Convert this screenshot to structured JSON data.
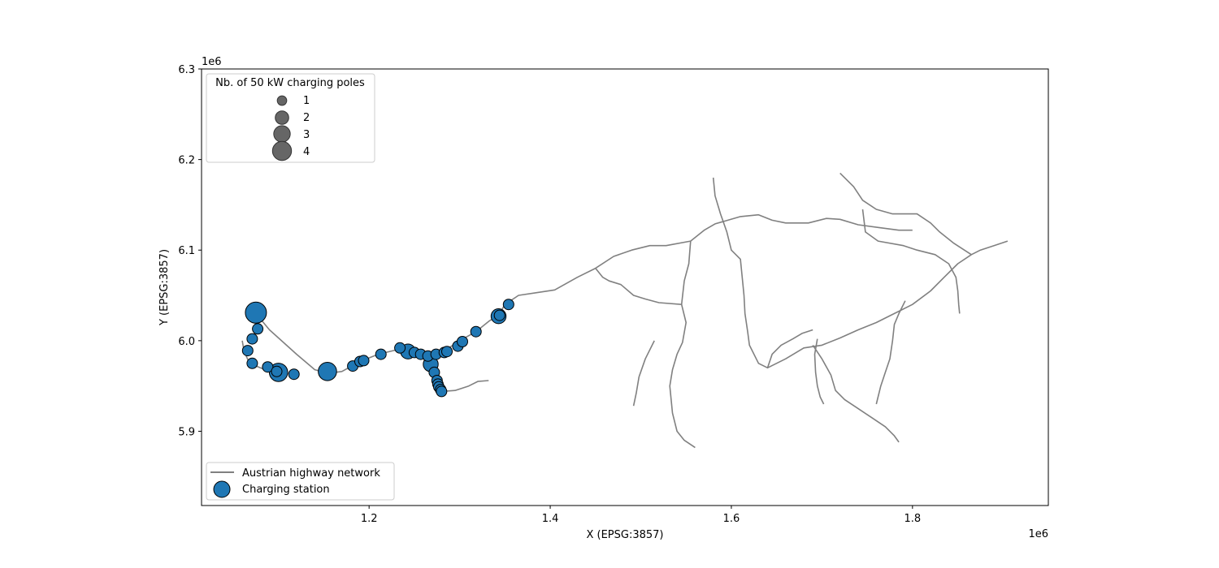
{
  "chart_data": {
    "type": "scatter",
    "subtype": "map",
    "xlabel": "X (EPSG:3857)",
    "ylabel": "Y (EPSG:3857)",
    "x_offset_label": "1e6",
    "y_offset_label": "1e6",
    "xlim": [
      1015000,
      1950000
    ],
    "ylim": [
      5818000,
      6300000
    ],
    "x_ticks": [
      1.2,
      1.4,
      1.6,
      1.8
    ],
    "x_tick_labels": [
      "1.2",
      "1.4",
      "1.6",
      "1.8"
    ],
    "y_ticks": [
      5.9,
      6.0,
      6.1,
      6.2,
      6.3
    ],
    "y_tick_labels": [
      "5.9",
      "6.0",
      "6.1",
      "6.2",
      "6.3"
    ],
    "grid": false,
    "colors": {
      "station": "#1f77b4",
      "network": "#808080",
      "size_legend": "#666666"
    },
    "size_legend": {
      "title": "Nb. of 50 kW charging poles",
      "placement": "top-left",
      "entries": [
        {
          "label": "1",
          "value": 1
        },
        {
          "label": "2",
          "value": 2
        },
        {
          "label": "3",
          "value": 3
        },
        {
          "label": "4",
          "value": 4
        }
      ]
    },
    "legend": {
      "placement": "bottom-left",
      "entries": [
        {
          "label": "Austrian highway network",
          "kind": "line"
        },
        {
          "label": "Charging station",
          "kind": "marker"
        }
      ]
    },
    "network": [
      [
        [
          1075000,
          6030000
        ],
        [
          1090000,
          6012000
        ],
        [
          1100000,
          6003000
        ],
        [
          1120000,
          5985000
        ],
        [
          1140000,
          5968000
        ],
        [
          1155000,
          5964000
        ],
        [
          1170000,
          5966000
        ],
        [
          1190000,
          5977000
        ],
        [
          1210000,
          5985000
        ],
        [
          1235000,
          5991000
        ],
        [
          1250000,
          5988000
        ],
        [
          1265000,
          5985000
        ],
        [
          1285000,
          5990000
        ],
        [
          1300000,
          6000000
        ],
        [
          1318000,
          6010000
        ],
        [
          1333000,
          6022000
        ],
        [
          1343000,
          6028000
        ],
        [
          1350000,
          6040000
        ],
        [
          1365000,
          6050000
        ],
        [
          1385000,
          6053000
        ],
        [
          1405000,
          6056000
        ],
        [
          1430000,
          6070000
        ],
        [
          1450000,
          6080000
        ],
        [
          1470000,
          6093000
        ],
        [
          1490000,
          6100000
        ],
        [
          1510000,
          6105000
        ],
        [
          1528000,
          6105000
        ],
        [
          1555000,
          6110000
        ],
        [
          1570000,
          6122000
        ],
        [
          1582000,
          6129000
        ],
        [
          1610000,
          6137000
        ],
        [
          1630000,
          6139000
        ],
        [
          1645000,
          6133000
        ],
        [
          1660000,
          6130000
        ],
        [
          1685000,
          6130000
        ],
        [
          1705000,
          6135000
        ],
        [
          1720000,
          6134000
        ],
        [
          1740000,
          6128000
        ],
        [
          1762000,
          6125000
        ],
        [
          1785000,
          6122000
        ],
        [
          1800000,
          6122000
        ]
      ],
      [
        [
          1060000,
          6000000
        ],
        [
          1062000,
          5988000
        ],
        [
          1068000,
          5975000
        ],
        [
          1080000,
          5970000
        ],
        [
          1090000,
          5966000
        ],
        [
          1098000,
          5966000
        ],
        [
          1110000,
          5963000
        ]
      ],
      [
        [
          1267000,
          5975000
        ],
        [
          1270000,
          5965000
        ],
        [
          1272000,
          5955000
        ],
        [
          1275000,
          5948000
        ],
        [
          1280000,
          5944000
        ]
      ],
      [
        [
          1280000,
          5944000
        ],
        [
          1295000,
          5945000
        ],
        [
          1310000,
          5950000
        ],
        [
          1320000,
          5955000
        ],
        [
          1332000,
          5956000
        ]
      ],
      [
        [
          1555000,
          6110000
        ],
        [
          1553000,
          6085000
        ],
        [
          1548000,
          6066000
        ],
        [
          1545000,
          6040000
        ],
        [
          1550000,
          6020000
        ],
        [
          1546000,
          5998000
        ],
        [
          1540000,
          5985000
        ],
        [
          1535000,
          5968000
        ],
        [
          1532000,
          5950000
        ],
        [
          1535000,
          5920000
        ],
        [
          1540000,
          5900000
        ],
        [
          1548000,
          5890000
        ],
        [
          1560000,
          5882000
        ]
      ],
      [
        [
          1580000,
          6180000
        ],
        [
          1582000,
          6160000
        ],
        [
          1588000,
          6140000
        ],
        [
          1595000,
          6120000
        ],
        [
          1600000,
          6100000
        ],
        [
          1610000,
          6090000
        ],
        [
          1612000,
          6070000
        ],
        [
          1614000,
          6050000
        ],
        [
          1615000,
          6030000
        ],
        [
          1618000,
          6010000
        ],
        [
          1620000,
          5995000
        ],
        [
          1630000,
          5975000
        ],
        [
          1640000,
          5970000
        ],
        [
          1660000,
          5980000
        ],
        [
          1680000,
          5992000
        ],
        [
          1700000,
          5995000
        ],
        [
          1720000,
          6003000
        ],
        [
          1740000,
          6012000
        ],
        [
          1760000,
          6020000
        ],
        [
          1780000,
          6030000
        ],
        [
          1800000,
          6040000
        ],
        [
          1820000,
          6055000
        ],
        [
          1835000,
          6070000
        ],
        [
          1850000,
          6085000
        ],
        [
          1865000,
          6095000
        ],
        [
          1875000,
          6100000
        ],
        [
          1890000,
          6105000
        ],
        [
          1905000,
          6110000
        ]
      ],
      [
        [
          1745000,
          6145000
        ],
        [
          1748000,
          6120000
        ],
        [
          1762000,
          6110000
        ],
        [
          1790000,
          6105000
        ],
        [
          1805000,
          6100000
        ],
        [
          1825000,
          6095000
        ],
        [
          1840000,
          6085000
        ],
        [
          1848000,
          6070000
        ],
        [
          1850000,
          6055000
        ],
        [
          1851000,
          6040000
        ],
        [
          1852000,
          6030000
        ]
      ],
      [
        [
          1720000,
          6185000
        ],
        [
          1735000,
          6170000
        ],
        [
          1745000,
          6155000
        ],
        [
          1760000,
          6145000
        ],
        [
          1778000,
          6140000
        ],
        [
          1790000,
          6140000
        ],
        [
          1805000,
          6140000
        ],
        [
          1820000,
          6130000
        ],
        [
          1830000,
          6120000
        ],
        [
          1845000,
          6108000
        ],
        [
          1865000,
          6095000
        ]
      ],
      [
        [
          1690000,
          5995000
        ],
        [
          1700000,
          5980000
        ],
        [
          1710000,
          5962000
        ],
        [
          1715000,
          5945000
        ],
        [
          1725000,
          5935000
        ],
        [
          1740000,
          5925000
        ],
        [
          1755000,
          5915000
        ],
        [
          1770000,
          5905000
        ],
        [
          1780000,
          5895000
        ],
        [
          1785000,
          5888000
        ]
      ],
      [
        [
          1760000,
          5930000
        ],
        [
          1765000,
          5950000
        ],
        [
          1770000,
          5965000
        ],
        [
          1775000,
          5980000
        ],
        [
          1778000,
          6000000
        ],
        [
          1780000,
          6018000
        ],
        [
          1785000,
          6030000
        ],
        [
          1792000,
          6044000
        ]
      ],
      [
        [
          1695000,
          6002000
        ],
        [
          1692000,
          5985000
        ],
        [
          1693000,
          5965000
        ],
        [
          1695000,
          5950000
        ],
        [
          1698000,
          5938000
        ],
        [
          1702000,
          5930000
        ]
      ],
      [
        [
          1640000,
          5970000
        ],
        [
          1645000,
          5985000
        ],
        [
          1655000,
          5995000
        ],
        [
          1668000,
          6002000
        ],
        [
          1678000,
          6008000
        ],
        [
          1690000,
          6012000
        ]
      ],
      [
        [
          1515000,
          6000000
        ],
        [
          1505000,
          5980000
        ],
        [
          1498000,
          5960000
        ],
        [
          1495000,
          5942000
        ],
        [
          1492000,
          5928000
        ]
      ],
      [
        [
          1545000,
          6040000
        ],
        [
          1520000,
          6042000
        ],
        [
          1505000,
          6046000
        ],
        [
          1492000,
          6050000
        ],
        [
          1478000,
          6062000
        ],
        [
          1465000,
          6066000
        ],
        [
          1458000,
          6070000
        ],
        [
          1450000,
          6080000
        ]
      ]
    ],
    "stations": [
      {
        "x": 1075000,
        "y": 6031000,
        "poles": 4
      },
      {
        "x": 1077000,
        "y": 6013000,
        "poles": 1
      },
      {
        "x": 1071000,
        "y": 6002000,
        "poles": 1
      },
      {
        "x": 1066000,
        "y": 5989000,
        "poles": 1
      },
      {
        "x": 1071000,
        "y": 5975000,
        "poles": 1
      },
      {
        "x": 1088000,
        "y": 5971000,
        "poles": 1
      },
      {
        "x": 1098000,
        "y": 5966000,
        "poles": 1
      },
      {
        "x": 1100000,
        "y": 5965000,
        "poles": 3
      },
      {
        "x": 1117000,
        "y": 5963000,
        "poles": 1
      },
      {
        "x": 1154000,
        "y": 5966000,
        "poles": 3
      },
      {
        "x": 1182000,
        "y": 5972000,
        "poles": 1
      },
      {
        "x": 1190000,
        "y": 5977000,
        "poles": 1
      },
      {
        "x": 1194000,
        "y": 5978000,
        "poles": 1
      },
      {
        "x": 1213000,
        "y": 5985000,
        "poles": 1
      },
      {
        "x": 1234000,
        "y": 5992000,
        "poles": 1
      },
      {
        "x": 1243000,
        "y": 5988000,
        "poles": 2
      },
      {
        "x": 1250000,
        "y": 5987000,
        "poles": 1
      },
      {
        "x": 1257000,
        "y": 5985000,
        "poles": 1
      },
      {
        "x": 1265000,
        "y": 5983000,
        "poles": 1
      },
      {
        "x": 1274000,
        "y": 5985000,
        "poles": 1
      },
      {
        "x": 1283000,
        "y": 5987000,
        "poles": 1
      },
      {
        "x": 1286000,
        "y": 5988000,
        "poles": 1
      },
      {
        "x": 1298000,
        "y": 5994000,
        "poles": 1
      },
      {
        "x": 1303000,
        "y": 5999000,
        "poles": 1
      },
      {
        "x": 1318000,
        "y": 6010000,
        "poles": 1
      },
      {
        "x": 1343000,
        "y": 6027000,
        "poles": 2
      },
      {
        "x": 1344000,
        "y": 6028000,
        "poles": 1
      },
      {
        "x": 1354000,
        "y": 6040000,
        "poles": 1
      },
      {
        "x": 1268000,
        "y": 5974000,
        "poles": 2
      },
      {
        "x": 1272000,
        "y": 5965000,
        "poles": 1
      },
      {
        "x": 1275000,
        "y": 5956000,
        "poles": 1
      },
      {
        "x": 1276000,
        "y": 5952000,
        "poles": 1
      },
      {
        "x": 1277000,
        "y": 5949000,
        "poles": 1
      },
      {
        "x": 1279000,
        "y": 5946000,
        "poles": 1
      },
      {
        "x": 1280000,
        "y": 5944000,
        "poles": 1
      }
    ]
  }
}
